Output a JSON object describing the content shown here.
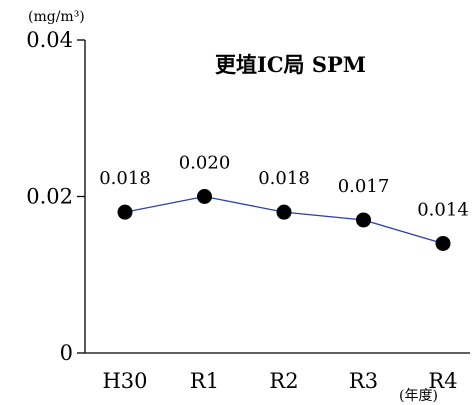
{
  "chart_data": {
    "type": "line",
    "title": "更埴IC局 SPM",
    "ylabel": "(mg/m³)",
    "xlabel": "(年度)",
    "categories": [
      "H30",
      "R1",
      "R2",
      "R3",
      "R4"
    ],
    "series": [
      {
        "values": [
          0.018,
          0.02,
          0.018,
          0.017,
          0.014
        ]
      }
    ],
    "data_labels": [
      "0.018",
      "0.020",
      "0.018",
      "0.017",
      "0.014"
    ],
    "yticks": [
      0,
      0.02,
      0.04
    ],
    "ytick_labels": [
      "0",
      "0.02",
      "0.04"
    ],
    "ylim": [
      0,
      0.04
    ],
    "grid": false,
    "line_color": "#2b3fa8",
    "marker_color": "#000000"
  }
}
